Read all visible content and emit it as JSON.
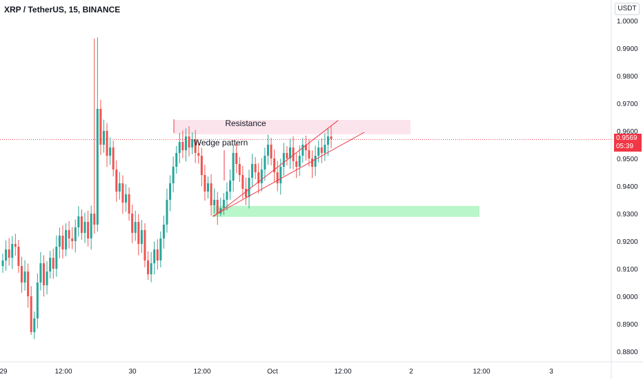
{
  "header": {
    "title": "XRP / TetherUS, 15, BINANCE",
    "currency": "USDT"
  },
  "last_price": {
    "value": "0.9569",
    "countdown": "05:39",
    "color": "#f23645"
  },
  "colors": {
    "up": "#26a69a",
    "down": "#ef5350",
    "wedge": "#f23645",
    "resistance_fill": "#fce4ec",
    "support_fill": "#b9f6ca"
  },
  "chart_data": {
    "type": "candlestick",
    "title": "XRP / TetherUS, 15, BINANCE",
    "ylim": [
      0.875,
      1.004
    ],
    "y_ticks": [
      "1.0000",
      "0.9900",
      "0.9800",
      "0.9700",
      "0.9600",
      "0.9500",
      "0.9400",
      "0.9300",
      "0.9200",
      "0.9100",
      "0.9000",
      "0.8900",
      "0.8800"
    ],
    "x_ticks": [
      "29",
      "12:00",
      "30",
      "12:00",
      "Oct",
      "12:00",
      "2",
      "12:00",
      "3"
    ],
    "annotations": {
      "resistance_label": "Resistance",
      "wedge_label": "Wedge pattern",
      "resistance_zone": [
        0.9588,
        0.964
      ],
      "support_zone": [
        0.9288,
        0.9328
      ]
    },
    "series_close": [
      0.913,
      0.917,
      0.914,
      0.919,
      0.918,
      0.911,
      0.905,
      0.909,
      0.9,
      0.887,
      0.892,
      0.905,
      0.912,
      0.904,
      0.909,
      0.914,
      0.91,
      0.918,
      0.922,
      0.917,
      0.924,
      0.921,
      0.92,
      0.925,
      0.929,
      0.923,
      0.927,
      0.921,
      0.93,
      0.926,
      0.968,
      0.955,
      0.96,
      0.951,
      0.954,
      0.946,
      0.938,
      0.941,
      0.934,
      0.937,
      0.93,
      0.923,
      0.927,
      0.919,
      0.924,
      0.913,
      0.908,
      0.912,
      0.917,
      0.913,
      0.921,
      0.926,
      0.935,
      0.941,
      0.947,
      0.952,
      0.956,
      0.953,
      0.958,
      0.954,
      0.957,
      0.952,
      0.951,
      0.944,
      0.938,
      0.941,
      0.933,
      0.935,
      0.93,
      0.932,
      0.935,
      0.938,
      0.942,
      0.952,
      0.948,
      0.944,
      0.939,
      0.936,
      0.943,
      0.948,
      0.945,
      0.941,
      0.946,
      0.951,
      0.955,
      0.95,
      0.945,
      0.941,
      0.947,
      0.952,
      0.95,
      0.954,
      0.949,
      0.947,
      0.951,
      0.955,
      0.953,
      0.95,
      0.947,
      0.951,
      0.954,
      0.952,
      0.955,
      0.958,
      0.957
    ]
  }
}
